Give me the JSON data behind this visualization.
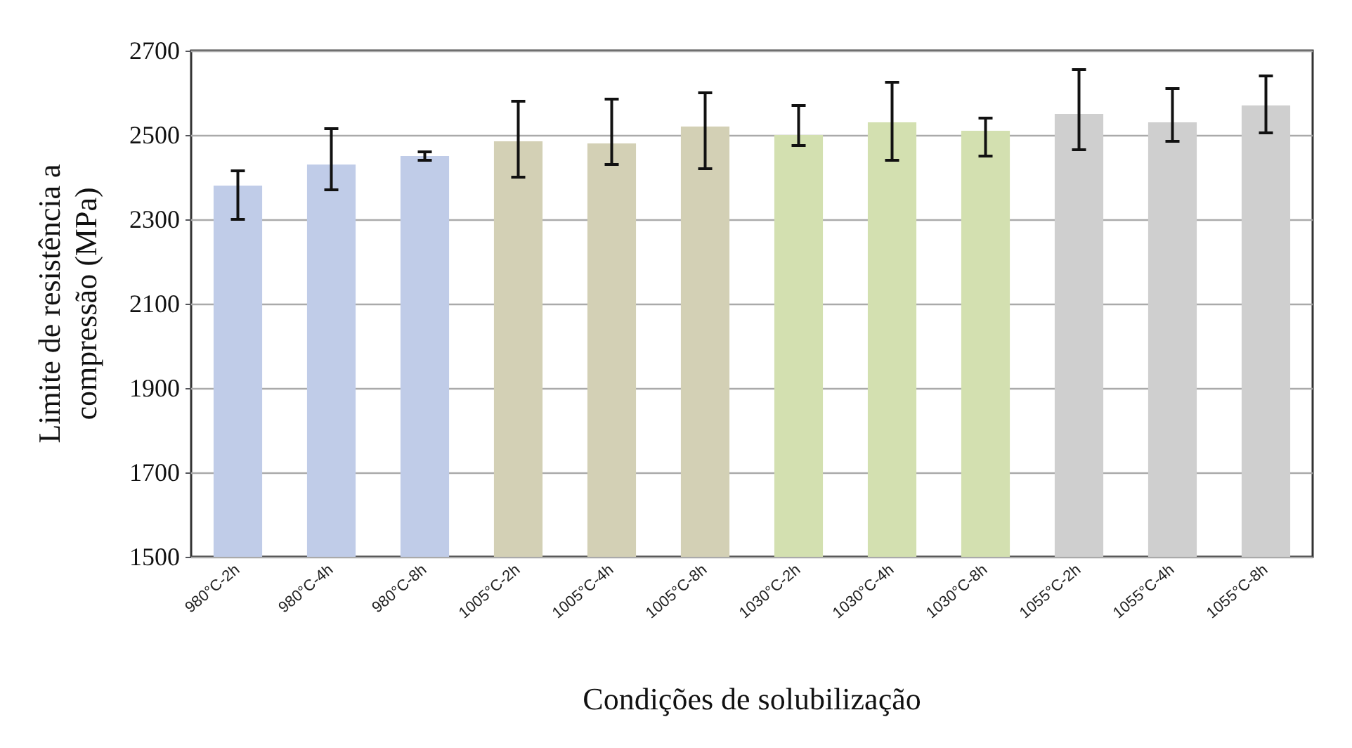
{
  "chart_data": {
    "type": "bar",
    "xlabel": "Condições de solubilização",
    "ylabel": "Limite de resistência a\ncompressão (MPa)",
    "categories": [
      "980°C-2h",
      "980°C-4h",
      "980°C-8h",
      "1005°C-2h",
      "1005°C-4h",
      "1005°C-8h",
      "1030°C-2h",
      "1030°C-4h",
      "1030°C-8h",
      "1055°C-2h",
      "1055°C-4h",
      "1055°C-8h"
    ],
    "values": [
      2380,
      2430,
      2450,
      2485,
      2480,
      2520,
      2500,
      2530,
      2510,
      2550,
      2530,
      2570
    ],
    "errors": [
      [
        2300,
        2415
      ],
      [
        2370,
        2515
      ],
      [
        2440,
        2460
      ],
      [
        2400,
        2580
      ],
      [
        2430,
        2585
      ],
      [
        2420,
        2600
      ],
      [
        2475,
        2570
      ],
      [
        2440,
        2625
      ],
      [
        2450,
        2540
      ],
      [
        2465,
        2655
      ],
      [
        2485,
        2610
      ],
      [
        2505,
        2640
      ]
    ],
    "colors": [
      "#c0cce8",
      "#c0cce8",
      "#c0cce8",
      "#d3d0b5",
      "#d3d0b5",
      "#d3d0b5",
      "#d3e0b0",
      "#d3e0b0",
      "#d3e0b0",
      "#cfcfcf",
      "#cfcfcf",
      "#cfcfcf"
    ],
    "ylim": [
      1500,
      2700
    ],
    "yticks": [
      1500,
      1700,
      1900,
      2100,
      2300,
      2500,
      2700
    ],
    "grid": "y"
  }
}
